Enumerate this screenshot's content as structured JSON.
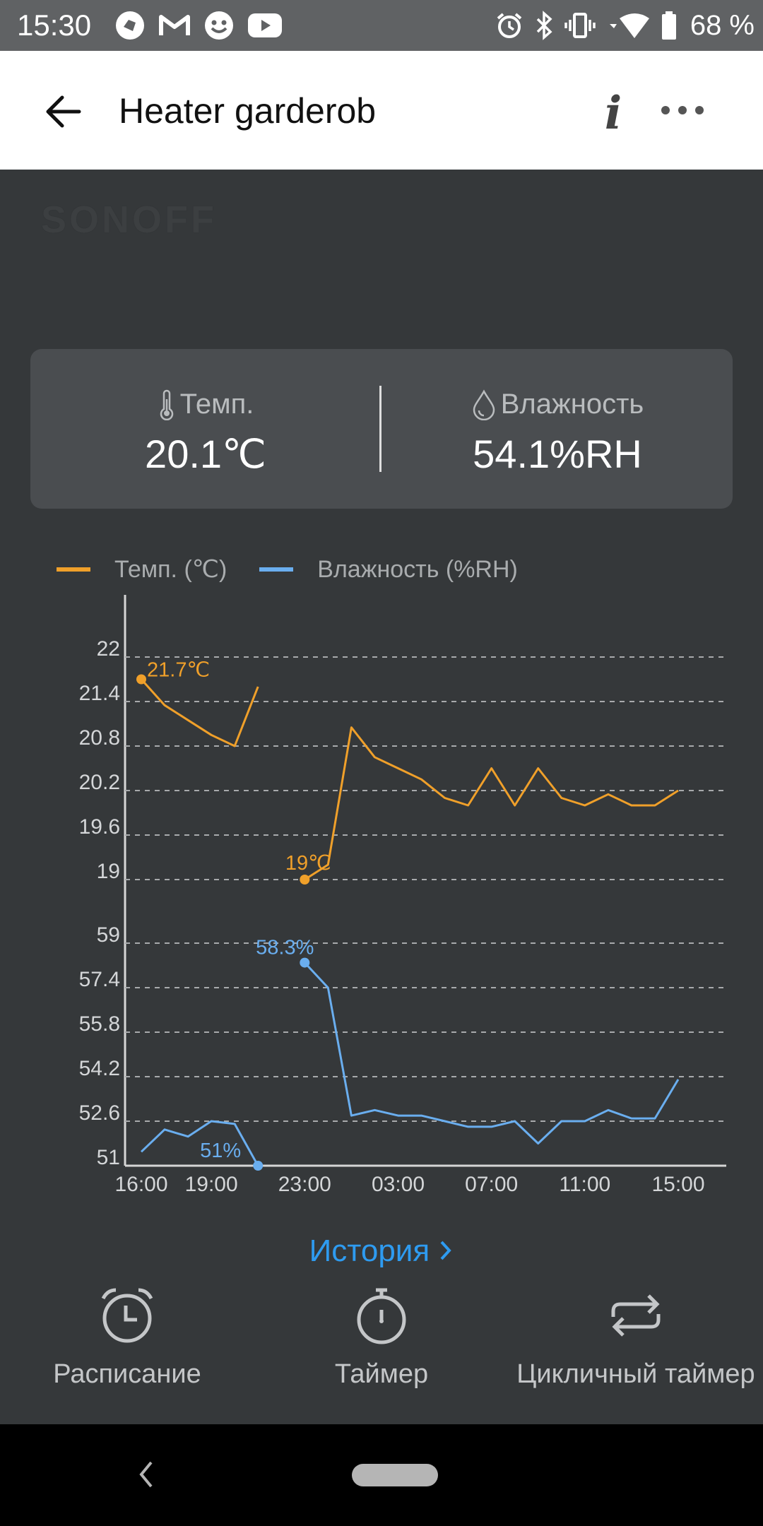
{
  "status_bar": {
    "time": "15:30",
    "battery": "68 %",
    "left_icons": [
      "app-icon",
      "gmail-icon",
      "emoji-icon",
      "youtube-icon"
    ],
    "right_icons": [
      "alarm-icon",
      "bluetooth-icon",
      "vibrate-icon",
      "wifi-icon",
      "battery-icon"
    ]
  },
  "app_bar": {
    "title": "Heater garderob",
    "info_glyph": "i"
  },
  "brand": {
    "logo_text": "SONOFF"
  },
  "readings": {
    "temp": {
      "label": "Темп.",
      "value": "20.1℃",
      "icon": "thermometer-icon"
    },
    "humidity": {
      "label": "Влажность",
      "value": "54.1%RH",
      "icon": "droplet-icon"
    }
  },
  "chart_data": [
    {
      "type": "line",
      "name": "temperature",
      "legend": "Темп. (℃)",
      "color": "#f0a02a",
      "x_ticks": [
        "16:00",
        "19:00",
        "23:00",
        "03:00",
        "07:00",
        "11:00",
        "15:00"
      ],
      "y_ticks": [
        "19",
        "19.6",
        "20.2",
        "20.8",
        "21.4",
        "22"
      ],
      "ylim": [
        19,
        22
      ],
      "segments": [
        [
          {
            "x": 16.0,
            "y": 21.7
          },
          {
            "x": 17.0,
            "y": 21.35
          },
          {
            "x": 18.0,
            "y": 21.15
          },
          {
            "x": 19.0,
            "y": 20.95
          },
          {
            "x": 20.0,
            "y": 20.8
          },
          {
            "x": 21.0,
            "y": 21.6
          }
        ],
        [
          {
            "x": 23.0,
            "y": 19.0
          },
          {
            "x": 24.0,
            "y": 19.2
          },
          {
            "x": 25.0,
            "y": 21.05
          },
          {
            "x": 26.0,
            "y": 20.65
          },
          {
            "x": 27.0,
            "y": 20.5
          },
          {
            "x": 28.0,
            "y": 20.35
          },
          {
            "x": 29.0,
            "y": 20.1
          },
          {
            "x": 30.0,
            "y": 20.0
          },
          {
            "x": 31.0,
            "y": 20.5
          },
          {
            "x": 32.0,
            "y": 20.0
          },
          {
            "x": 33.0,
            "y": 20.5
          },
          {
            "x": 34.0,
            "y": 20.1
          },
          {
            "x": 35.0,
            "y": 20.0
          },
          {
            "x": 36.0,
            "y": 20.15
          },
          {
            "x": 37.0,
            "y": 20.0
          },
          {
            "x": 38.0,
            "y": 20.0
          },
          {
            "x": 39.0,
            "y": 20.2
          }
        ]
      ],
      "annotations": [
        {
          "label": "21.7℃",
          "x": 16.0,
          "y": 21.7
        },
        {
          "label": "19℃",
          "x": 23.0,
          "y": 19.0
        }
      ],
      "grid": "dashed"
    },
    {
      "type": "line",
      "name": "humidity",
      "legend": "Влажность (%RH)",
      "color": "#6aaeef",
      "x_ticks": [
        "16:00",
        "19:00",
        "23:00",
        "03:00",
        "07:00",
        "11:00",
        "15:00"
      ],
      "y_ticks": [
        "51",
        "52.6",
        "54.2",
        "55.8",
        "57.4",
        "59"
      ],
      "ylim": [
        51,
        59
      ],
      "segments": [
        [
          {
            "x": 16.0,
            "y": 51.5
          },
          {
            "x": 17.0,
            "y": 52.3
          },
          {
            "x": 18.0,
            "y": 52.05
          },
          {
            "x": 19.0,
            "y": 52.6
          },
          {
            "x": 20.0,
            "y": 52.5
          },
          {
            "x": 21.0,
            "y": 51.0
          }
        ],
        [
          {
            "x": 23.0,
            "y": 58.3
          },
          {
            "x": 24.0,
            "y": 57.4
          },
          {
            "x": 25.0,
            "y": 52.8
          },
          {
            "x": 26.0,
            "y": 53.0
          },
          {
            "x": 27.0,
            "y": 52.8
          },
          {
            "x": 28.0,
            "y": 52.8
          },
          {
            "x": 29.0,
            "y": 52.6
          },
          {
            "x": 30.0,
            "y": 52.4
          },
          {
            "x": 31.0,
            "y": 52.4
          },
          {
            "x": 32.0,
            "y": 52.6
          },
          {
            "x": 33.0,
            "y": 51.8
          },
          {
            "x": 34.0,
            "y": 52.6
          },
          {
            "x": 35.0,
            "y": 52.6
          },
          {
            "x": 36.0,
            "y": 53.0
          },
          {
            "x": 37.0,
            "y": 52.7
          },
          {
            "x": 38.0,
            "y": 52.7
          },
          {
            "x": 39.0,
            "y": 54.1
          }
        ]
      ],
      "annotations": [
        {
          "label": "58.3%",
          "x": 23.0,
          "y": 58.3
        },
        {
          "label": "51%",
          "x": 21.0,
          "y": 51.0
        }
      ],
      "grid": "dashed"
    }
  ],
  "history_link": "История",
  "actions": [
    {
      "label": "Расписание",
      "icon": "alarm-clock-icon"
    },
    {
      "label": "Таймер",
      "icon": "stopwatch-icon"
    },
    {
      "label": "Цикличный таймер",
      "icon": "repeat-icon"
    }
  ]
}
